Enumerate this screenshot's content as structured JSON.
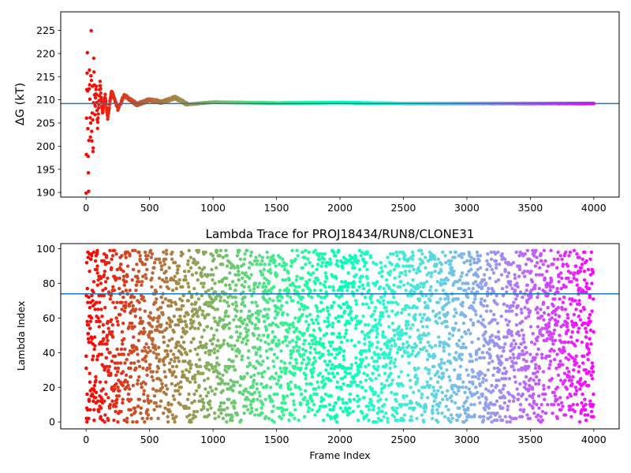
{
  "chart_data": [
    {
      "type": "scatter",
      "title": "",
      "xlabel": "",
      "ylabel": "ΔG (kT)",
      "xlim": [
        -200,
        4200
      ],
      "ylim": [
        189,
        229
      ],
      "xticks": [
        "0",
        "500",
        "1000",
        "1500",
        "2000",
        "2500",
        "3000",
        "3500",
        "4000"
      ],
      "yticks": [
        "190",
        "195",
        "200",
        "205",
        "210",
        "215",
        "220",
        "225"
      ],
      "colormap": "rainbow (red at frame 0 → violet at frame 4000)",
      "hline": 209.2,
      "hline_color": "#1f77b4",
      "series": [
        {
          "frames": [
            0,
            5,
            10,
            15,
            20,
            25,
            30,
            35,
            40,
            45,
            50,
            55,
            60,
            65,
            70,
            75,
            80,
            90,
            100,
            110,
            120,
            130,
            150,
            170,
            200,
            250,
            300,
            400,
            500,
            600,
            700,
            800,
            1000,
            1500,
            2000,
            2500,
            3000,
            3500,
            4000
          ],
          "values": [
            190,
            210,
            220,
            200,
            190,
            218,
            210,
            200,
            225,
            198,
            213,
            195,
            219,
            212,
            207,
            211,
            213,
            204,
            209,
            214,
            210,
            207,
            211,
            206,
            212,
            208,
            211,
            209,
            210,
            209.5,
            210.5,
            209,
            209.5,
            209.3,
            209.4,
            209.2,
            209.2,
            209.2,
            209.2
          ]
        }
      ]
    },
    {
      "type": "scatter",
      "title": "Lambda Trace for PROJ18434/RUN8/CLONE31",
      "xlabel": "Frame Index",
      "ylabel": "Lambda Index",
      "xlim": [
        -200,
        4200
      ],
      "ylim": [
        -4,
        103
      ],
      "xticks": [
        "0",
        "500",
        "1000",
        "1500",
        "2000",
        "2500",
        "3000",
        "3500",
        "4000"
      ],
      "yticks": [
        "0",
        "20",
        "40",
        "60",
        "80",
        "100"
      ],
      "colormap": "rainbow (red at frame 0 → violet at frame 4000)",
      "hline": 74,
      "hline_color": "#1f77b4",
      "n_points": 4000,
      "value_range": [
        0,
        99
      ],
      "distribution": "approximately uniform random lambda index per frame"
    }
  ]
}
